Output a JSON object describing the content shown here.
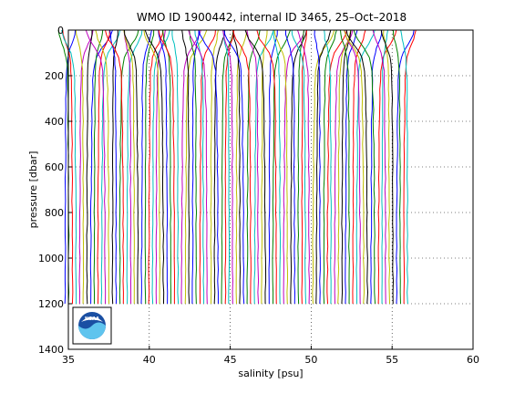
{
  "chart_data": {
    "type": "line",
    "title": "WMO ID 1900442, internal ID 3465, 25–Oct–2018",
    "xlabel": "salinity [psu]",
    "ylabel": "pressure [dbar]",
    "xlim": [
      35,
      60
    ],
    "ylim": [
      0,
      1400
    ],
    "y_reversed": true,
    "grid": true,
    "xticks": [
      "35",
      "40",
      "45",
      "50",
      "55",
      "60"
    ],
    "yticks": [
      "0",
      "200",
      "400",
      "600",
      "800",
      "1000",
      "1200",
      "1400"
    ],
    "colors": [
      "#0000ff",
      "#008000",
      "#ff0000",
      "#00bfbf",
      "#bf00bf",
      "#bfbf00",
      "#000000"
    ],
    "series_description": "About 95 successive salinity profiles, each offset by about 0.225 psu to the right of the previous one; deep values near 34.8 psu for the first profile.",
    "profile_count": 95,
    "offset_step": 0.225,
    "base_salinity_deep": 34.8,
    "pressure_levels": [
      0,
      20,
      40,
      60,
      80,
      100,
      120,
      150,
      180,
      220,
      260,
      300,
      350,
      400,
      450,
      500,
      550,
      600,
      650,
      700,
      750,
      800,
      850,
      900,
      950,
      1000,
      1050,
      1100,
      1150,
      1200
    ],
    "base_profile_anomaly": [
      0.75,
      0.7,
      0.62,
      0.5,
      0.38,
      0.28,
      0.2,
      0.14,
      0.1,
      0.08,
      0.07,
      0.06,
      0.05,
      0.045,
      0.04,
      0.035,
      0.03,
      0.026,
      0.022,
      0.018,
      0.015,
      0.012,
      0.01,
      0.008,
      0.006,
      0.004,
      0.003,
      0.002,
      0.001,
      0.0
    ]
  },
  "logo": {
    "text": "NOAA"
  }
}
